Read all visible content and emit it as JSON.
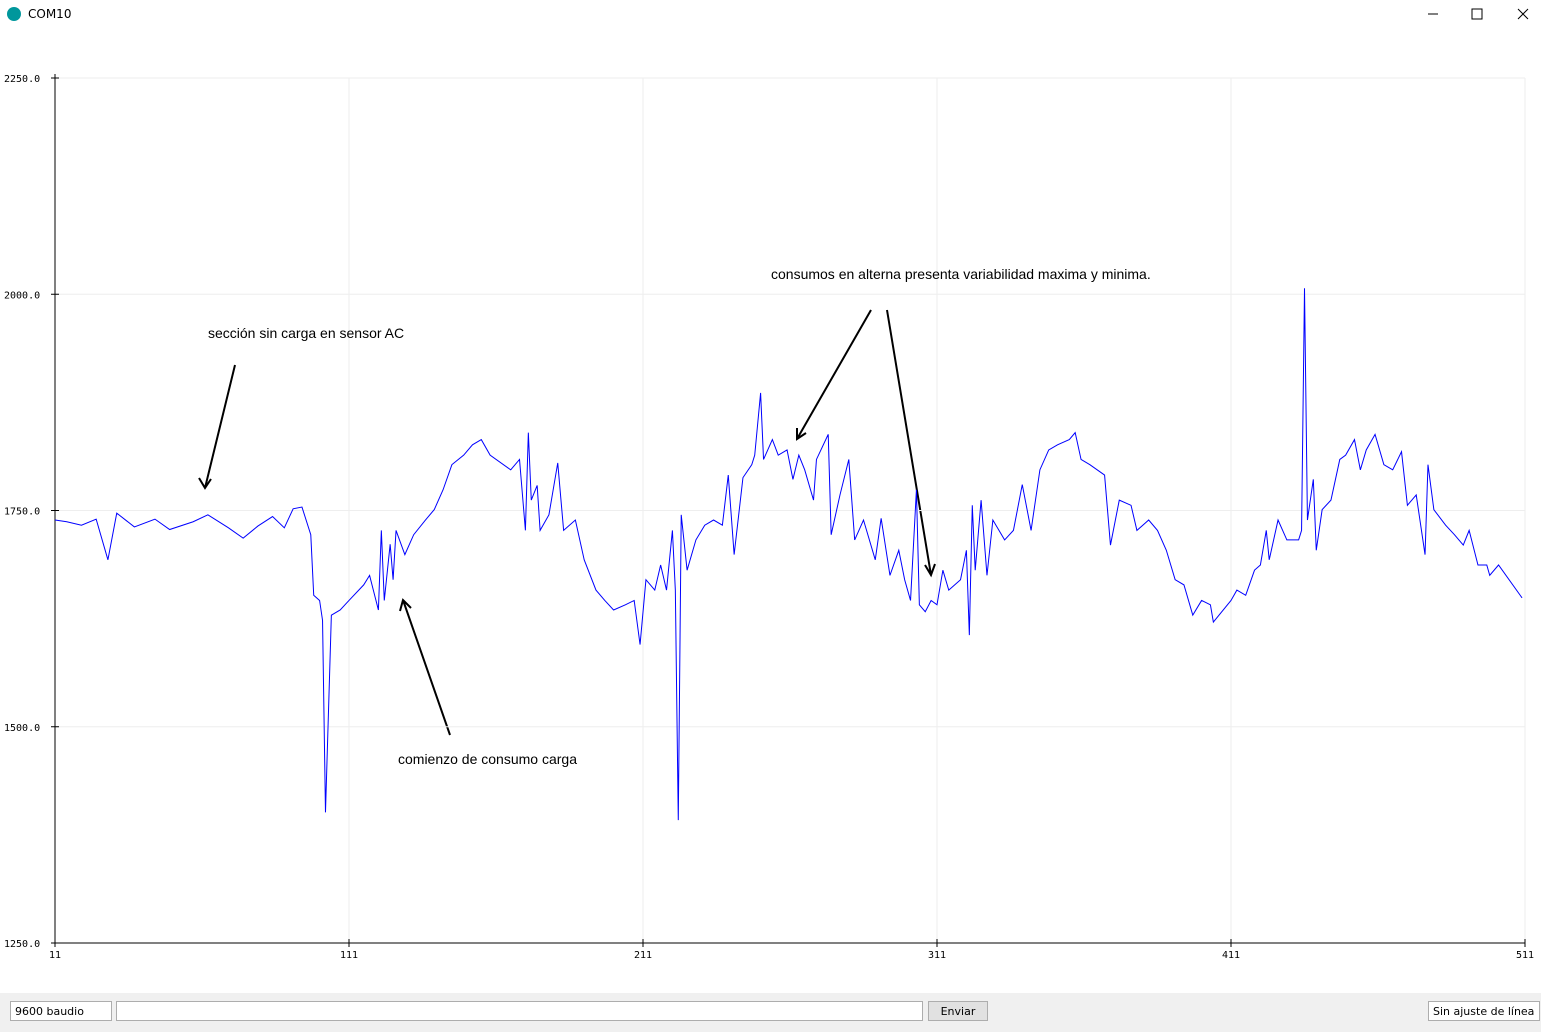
{
  "window": {
    "title": "COM10",
    "baud": "9600 baudio",
    "send": "Enviar",
    "line_ending": "Sin ajuste de línea"
  },
  "chart_data": {
    "type": "line",
    "xlim": [
      11,
      511
    ],
    "ylim": [
      1250,
      2250
    ],
    "xticks": [
      11,
      111,
      211,
      311,
      411,
      511
    ],
    "yticks": [
      {
        "value": 1250,
        "label": "1250.0"
      },
      {
        "value": 1500,
        "label": "1500.0"
      },
      {
        "value": 1750,
        "label": "1750.0"
      },
      {
        "value": 2000,
        "label": "2000.0"
      },
      {
        "value": 2250,
        "label": "2250.0"
      }
    ],
    "grid": true,
    "annotations": [
      "sección sin carga en sensor AC",
      "comienzo de consumo carga",
      "consumos en alterna presenta variabilidad maxima y minima."
    ],
    "x": [
      11,
      15,
      20,
      25,
      29,
      32,
      38,
      45,
      50,
      58,
      63,
      70,
      75,
      80,
      85,
      89,
      92,
      95,
      98,
      99,
      101,
      102,
      103,
      105,
      108,
      111,
      116,
      118,
      121,
      122,
      123,
      125,
      126,
      127,
      130,
      133,
      137,
      140,
      143,
      146,
      150,
      153,
      156,
      159,
      166,
      169,
      171,
      172,
      173,
      175,
      176,
      179,
      182,
      184,
      188,
      191,
      195,
      198,
      201,
      205,
      208,
      210,
      212,
      215,
      217,
      219,
      221,
      222,
      223,
      224,
      226,
      229,
      232,
      235,
      238,
      240,
      242,
      245,
      248,
      249,
      251,
      252,
      255,
      257,
      260,
      262,
      264,
      266,
      269,
      270,
      274,
      275,
      278,
      281,
      283,
      286,
      290,
      292,
      295,
      298,
      300,
      302,
      304,
      305,
      307,
      309,
      311,
      313,
      315,
      319,
      321,
      322,
      323,
      324,
      326,
      328,
      330,
      334,
      337,
      340,
      343,
      346,
      349,
      352,
      356,
      358,
      360,
      363,
      368,
      370,
      373,
      377,
      379,
      383,
      386,
      389,
      392,
      395,
      398,
      401,
      404,
      405,
      411,
      413,
      416,
      419,
      421,
      423,
      424,
      427,
      430,
      434,
      435,
      436,
      437,
      439,
      440,
      442,
      445,
      448,
      450,
      453,
      455,
      457,
      460,
      463,
      466,
      469,
      471,
      474,
      477,
      478,
      480,
      484,
      487,
      490,
      492,
      495,
      498,
      499,
      502,
      510
    ],
    "series": [
      {
        "color": "#0000ff",
        "values": [
          1739,
          1737,
          1733,
          1740,
          1693,
          1747,
          1731,
          1740,
          1728,
          1737,
          1745,
          1730,
          1718,
          1732,
          1743,
          1730,
          1752,
          1754,
          1722,
          1652,
          1646,
          1623,
          1401,
          1629,
          1635,
          1646,
          1664,
          1675,
          1635,
          1727,
          1646,
          1711,
          1670,
          1727,
          1699,
          1722,
          1739,
          1751,
          1774,
          1803,
          1814,
          1826,
          1832,
          1814,
          1797,
          1809,
          1727,
          1840,
          1762,
          1779,
          1727,
          1745,
          1805,
          1727,
          1739,
          1693,
          1658,
          1646,
          1635,
          1641,
          1646,
          1595,
          1670,
          1658,
          1687,
          1658,
          1727,
          1658,
          1392,
          1745,
          1681,
          1716,
          1733,
          1739,
          1733,
          1791,
          1699,
          1788,
          1803,
          1814,
          1886,
          1809,
          1832,
          1814,
          1820,
          1786,
          1814,
          1797,
          1762,
          1809,
          1838,
          1722,
          1768,
          1809,
          1716,
          1739,
          1693,
          1741,
          1675,
          1704,
          1670,
          1646,
          1774,
          1641,
          1633,
          1646,
          1641,
          1681,
          1658,
          1670,
          1704,
          1606,
          1756,
          1681,
          1762,
          1675,
          1739,
          1716,
          1727,
          1780,
          1727,
          1797,
          1820,
          1826,
          1832,
          1840,
          1809,
          1803,
          1791,
          1710,
          1762,
          1756,
          1727,
          1739,
          1727,
          1704,
          1670,
          1664,
          1629,
          1646,
          1641,
          1621,
          1646,
          1658,
          1652,
          1681,
          1687,
          1727,
          1693,
          1739,
          1716,
          1716,
          1727,
          2007,
          1739,
          1786,
          1704,
          1751,
          1762,
          1809,
          1814,
          1832,
          1797,
          1820,
          1838,
          1803,
          1797,
          1818,
          1756,
          1768,
          1699,
          1803,
          1751,
          1733,
          1722,
          1710,
          1727,
          1687,
          1687,
          1675,
          1687,
          1649
        ]
      }
    ]
  }
}
